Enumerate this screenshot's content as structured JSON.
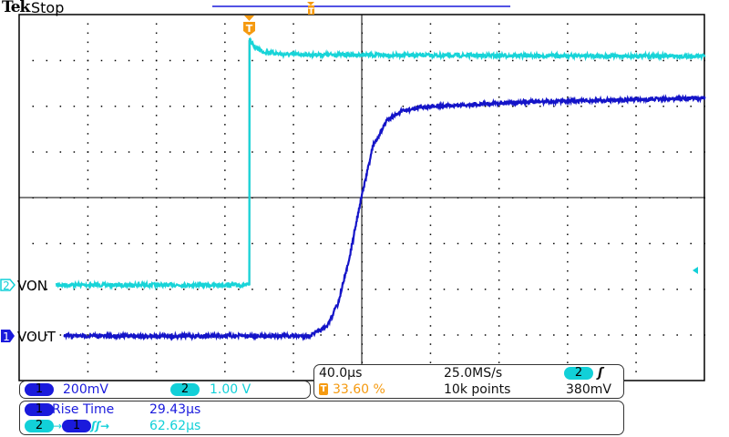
{
  "header": {
    "brand": "Tek",
    "state": "Stop"
  },
  "channels": [
    {
      "id": "1",
      "label": "VOUT",
      "scale": "200mV",
      "color": "#1414c8",
      "badge_color": "#1a1adc"
    },
    {
      "id": "2",
      "label": "VON",
      "scale": "1.00 V",
      "color": "#18d4d8",
      "badge_color": "#12d0d8"
    }
  ],
  "timebase": {
    "scale": "40.0µs",
    "sample_rate": "25.0MS/s",
    "record_length": "10k points",
    "trigger_position": "33.60 %",
    "trigger_marker": "T"
  },
  "trigger": {
    "source": "2",
    "slope": "rising",
    "slope_glyph": "ʃ",
    "level": "380mV"
  },
  "measurements": [
    {
      "source": "1",
      "name": "Rise Time",
      "value": "29.43µs"
    },
    {
      "source_from": "2",
      "source_to": "1",
      "glyph": "→",
      "edges": "ʃʃ→",
      "value": "62.62µs"
    }
  ],
  "chart_data": {
    "type": "line",
    "title": "",
    "xlabel": "",
    "ylabel": "",
    "x_units": "µs",
    "xlim": [
      -134.4,
      265.6
    ],
    "grid": true,
    "divisions": {
      "x": 10,
      "y": 8
    },
    "series": [
      {
        "name": "VON",
        "channel": "2",
        "units": "V",
        "volts_per_div": 1.0,
        "x": [
          -134.4,
          0,
          0.1,
          3,
          8,
          20,
          100,
          265.6
        ],
        "y": [
          0,
          0,
          5.35,
          5.2,
          5.1,
          5.04,
          5.02,
          5.0
        ]
      },
      {
        "name": "VOUT",
        "channel": "1",
        "units": "V",
        "volts_per_div": 0.2,
        "x": [
          -134.4,
          35,
          45,
          52,
          58,
          65,
          72,
          80,
          88,
          100,
          150,
          265.6
        ],
        "y": [
          0,
          0,
          0.04,
          0.15,
          0.33,
          0.6,
          0.83,
          0.94,
          0.98,
          1.0,
          1.02,
          1.04
        ]
      }
    ]
  }
}
